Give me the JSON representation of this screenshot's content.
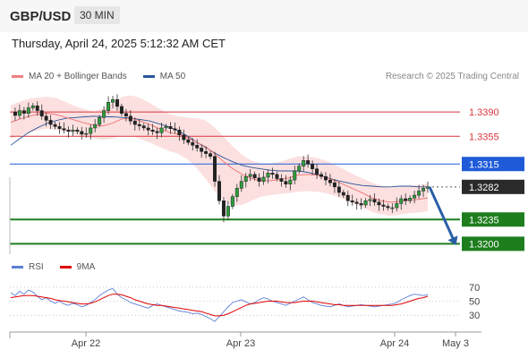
{
  "header": {
    "symbol": "GBP/USD",
    "timeframe": "30 MIN"
  },
  "datetime": "Thursday, April 24, 2025 5:12:32 AM CET",
  "legend_main": [
    {
      "label": "MA 20 + Bollinger Bands",
      "color": "#f08080"
    },
    {
      "label": "MA 50",
      "color": "#2a5599"
    }
  ],
  "credit": "Research © 2025 Trading Central",
  "legend_rsi": [
    {
      "label": "RSI",
      "color": "#5b7fd6"
    },
    {
      "label": "9MA",
      "color": "#e00000"
    }
  ],
  "chart_data": [
    {
      "type": "candlestick",
      "title": "GBP/USD",
      "ylim": [
        1.3185,
        1.3425
      ],
      "x_labels": [
        "Apr 22",
        "Apr 23",
        "Apr 24",
        "May 3"
      ],
      "levels": [
        {
          "value": 1.339,
          "label": "1.3390",
          "style": "resistance",
          "color": "#d9363e"
        },
        {
          "value": 1.3355,
          "label": "1.3355",
          "style": "resistance",
          "color": "#d9363e"
        },
        {
          "value": 1.3315,
          "label": "1.3315",
          "style": "pivot",
          "color": "#1f5bd8"
        },
        {
          "value": 1.3282,
          "label": "1.3282",
          "style": "current",
          "color": "#2a2a2a"
        },
        {
          "value": 1.3235,
          "label": "1.3235",
          "style": "support",
          "color": "#1e7e1e"
        },
        {
          "value": 1.32,
          "label": "1.3200",
          "style": "support",
          "color": "#1e7e1e"
        }
      ],
      "close_path": [
        1.339,
        1.3385,
        1.3392,
        1.3388,
        1.3396,
        1.3399,
        1.3392,
        1.3384,
        1.3378,
        1.3372,
        1.3369,
        1.3366,
        1.3364,
        1.3362,
        1.3364,
        1.3362,
        1.3358,
        1.3359,
        1.3367,
        1.3372,
        1.3382,
        1.3392,
        1.3404,
        1.3408,
        1.3398,
        1.3388,
        1.3384,
        1.3377,
        1.3372,
        1.337,
        1.3367,
        1.3364,
        1.3362,
        1.336,
        1.3367,
        1.3369,
        1.3366,
        1.3364,
        1.3357,
        1.335,
        1.3346,
        1.3342,
        1.3338,
        1.3333,
        1.333,
        1.3326,
        1.329,
        1.3262,
        1.324,
        1.3254,
        1.3268,
        1.328,
        1.329,
        1.3297,
        1.33,
        1.3295,
        1.329,
        1.3296,
        1.3302,
        1.33,
        1.3294,
        1.329,
        1.3286,
        1.3292,
        1.3305,
        1.3312,
        1.332,
        1.3315,
        1.3308,
        1.33,
        1.3297,
        1.3292,
        1.3288,
        1.3282,
        1.3274,
        1.327,
        1.3262,
        1.326,
        1.3258,
        1.3256,
        1.3262,
        1.3264,
        1.326,
        1.3256,
        1.3254,
        1.3252,
        1.3252,
        1.3258,
        1.3265,
        1.3262,
        1.3266,
        1.327,
        1.3276,
        1.328,
        1.3282
      ],
      "ma20": [
        1.3375,
        1.338,
        1.3384,
        1.3387,
        1.3388,
        1.3386,
        1.3382,
        1.3378,
        1.3374,
        1.3371,
        1.337,
        1.3374,
        1.338,
        1.3381,
        1.3377,
        1.3372,
        1.3366,
        1.3361,
        1.3358,
        1.3353,
        1.3347,
        1.334,
        1.333,
        1.3318,
        1.3308,
        1.33,
        1.3294,
        1.3291,
        1.3291,
        1.3293,
        1.3295,
        1.3299,
        1.33,
        1.3299,
        1.3296,
        1.3291,
        1.3285,
        1.3279,
        1.3273,
        1.3266,
        1.3262,
        1.326,
        1.3261,
        1.3263,
        1.3264,
        1.3266
      ],
      "ma50": [
        1.3342,
        1.3352,
        1.3361,
        1.3368,
        1.3374,
        1.3378,
        1.3381,
        1.3382,
        1.3383,
        1.3384,
        1.3383,
        1.3383,
        1.3382,
        1.3381,
        1.3379,
        1.3377,
        1.3373,
        1.3369,
        1.3363,
        1.3356,
        1.3347,
        1.3339,
        1.3331,
        1.3324,
        1.3318,
        1.3313,
        1.331,
        1.3308,
        1.3306,
        1.3305,
        1.3305,
        1.3305,
        1.3303,
        1.33,
        1.3296,
        1.3292,
        1.3289,
        1.3286,
        1.3284,
        1.3283,
        1.3282,
        1.3282,
        1.3283,
        1.3283,
        1.3282,
        1.3282
      ],
      "bb_upper": [
        1.34,
        1.3405,
        1.3409,
        1.3411,
        1.3412,
        1.341,
        1.3404,
        1.3398,
        1.3394,
        1.3391,
        1.3395,
        1.3403,
        1.3412,
        1.3414,
        1.341,
        1.3403,
        1.3395,
        1.3388,
        1.3384,
        1.3382,
        1.3381,
        1.3378,
        1.3368,
        1.3354,
        1.334,
        1.3328,
        1.332,
        1.3316,
        1.3316,
        1.3318,
        1.3322,
        1.3326,
        1.3326,
        1.3324,
        1.332,
        1.3314,
        1.3307,
        1.33,
        1.3294,
        1.3288,
        1.3284,
        1.3281,
        1.3282,
        1.3284,
        1.3285,
        1.3286
      ],
      "bb_lower": [
        1.3352,
        1.3356,
        1.336,
        1.3364,
        1.3366,
        1.3364,
        1.3362,
        1.3358,
        1.3354,
        1.3352,
        1.335,
        1.3352,
        1.3356,
        1.3356,
        1.3351,
        1.3346,
        1.334,
        1.3334,
        1.333,
        1.3322,
        1.331,
        1.3294,
        1.3276,
        1.3262,
        1.3255,
        1.3256,
        1.3262,
        1.3268,
        1.327,
        1.3272,
        1.3273,
        1.3275,
        1.3276,
        1.3275,
        1.3273,
        1.3269,
        1.3264,
        1.3258,
        1.3252,
        1.3246,
        1.3242,
        1.324,
        1.3242,
        1.3244,
        1.3245,
        1.3247
      ],
      "forecast": {
        "from": 1.3282,
        "to": 1.32
      }
    },
    {
      "type": "line",
      "title": "RSI",
      "ylim": [
        20,
        80
      ],
      "yticks": [
        70,
        50,
        30
      ],
      "rsi": [
        62,
        58,
        64,
        60,
        66,
        63,
        57,
        52,
        55,
        50,
        47,
        50,
        46,
        44,
        47,
        45,
        42,
        44,
        48,
        52,
        58,
        62,
        66,
        68,
        60,
        55,
        52,
        48,
        46,
        44,
        42,
        40,
        44,
        46,
        44,
        42,
        40,
        38,
        36,
        35,
        34,
        32,
        33,
        31,
        28,
        25,
        21,
        28,
        35,
        42,
        48,
        50,
        52,
        49,
        46,
        48,
        52,
        55,
        53,
        50,
        48,
        46,
        44,
        47,
        50,
        53,
        56,
        52,
        48,
        46,
        44,
        43,
        42,
        44,
        46,
        44,
        42,
        43,
        44,
        45,
        44,
        43,
        42,
        43,
        44,
        45,
        46,
        48,
        52,
        55,
        58,
        60,
        59,
        58,
        59
      ],
      "rsi_ma": [
        55,
        56,
        57,
        58,
        58,
        58,
        57,
        56,
        55,
        54,
        52,
        51,
        50,
        49,
        48,
        47,
        46,
        46,
        47,
        49,
        52,
        55,
        58,
        60,
        60,
        59,
        57,
        55,
        52,
        50,
        48,
        46,
        45,
        44,
        44,
        43,
        42,
        41,
        40,
        39,
        38,
        37,
        36,
        35,
        33,
        31,
        29,
        29,
        30,
        32,
        35,
        38,
        41,
        44,
        46,
        47,
        48,
        49,
        50,
        50,
        50,
        49,
        48,
        48,
        48,
        49,
        50,
        50,
        50,
        49,
        48,
        47,
        46,
        45,
        45,
        44,
        44,
        44,
        44,
        44,
        44,
        44,
        44,
        44,
        44,
        44,
        44,
        45,
        46,
        48,
        50,
        52,
        54,
        55,
        57
      ]
    }
  ]
}
